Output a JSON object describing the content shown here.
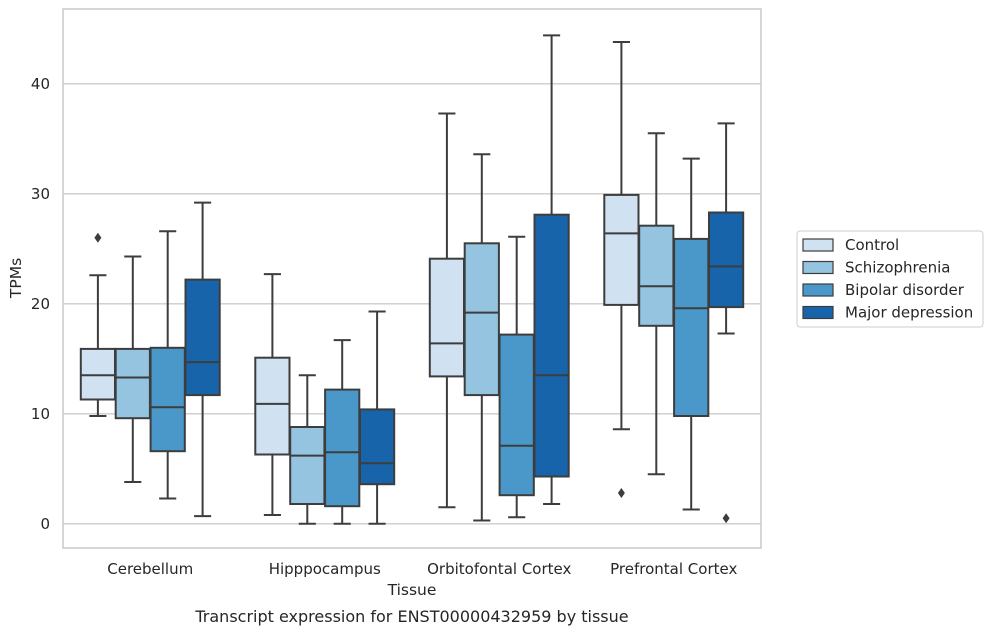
{
  "chart_data": {
    "type": "boxplot",
    "title": "",
    "caption": "Transcript expression for ENST00000432959 by tissue",
    "xlabel": "Tissue",
    "ylabel": "TPMs",
    "ylim": [
      -2.2,
      46.8
    ],
    "yticks": [
      0,
      10,
      20,
      30,
      40
    ],
    "grid": "horizontal",
    "legend_position": "right",
    "categories": [
      "Cerebellum",
      "Hipppocampus",
      "Orbitofontal Cortex",
      "Prefrontal Cortex"
    ],
    "series": [
      {
        "name": "Control",
        "color": "#d0e1f2",
        "boxes": [
          {
            "whisker_low": 9.8,
            "q1": 11.3,
            "median": 13.5,
            "q3": 15.9,
            "whisker_high": 22.6,
            "outliers": [
              26.0
            ]
          },
          {
            "whisker_low": 0.8,
            "q1": 6.3,
            "median": 10.9,
            "q3": 15.1,
            "whisker_high": 22.7,
            "outliers": []
          },
          {
            "whisker_low": 1.5,
            "q1": 13.4,
            "median": 16.4,
            "q3": 24.1,
            "whisker_high": 37.3,
            "outliers": []
          },
          {
            "whisker_low": 8.6,
            "q1": 19.9,
            "median": 26.4,
            "q3": 29.9,
            "whisker_high": 43.8,
            "outliers": [
              2.8
            ]
          }
        ]
      },
      {
        "name": "Schizophrenia",
        "color": "#94c4df",
        "boxes": [
          {
            "whisker_low": 3.8,
            "q1": 9.6,
            "median": 13.3,
            "q3": 15.9,
            "whisker_high": 24.3,
            "outliers": []
          },
          {
            "whisker_low": 0.0,
            "q1": 1.8,
            "median": 6.2,
            "q3": 8.8,
            "whisker_high": 13.5,
            "outliers": []
          },
          {
            "whisker_low": 0.3,
            "q1": 11.7,
            "median": 19.2,
            "q3": 25.5,
            "whisker_high": 33.6,
            "outliers": []
          },
          {
            "whisker_low": 4.5,
            "q1": 18.0,
            "median": 21.6,
            "q3": 27.1,
            "whisker_high": 35.5,
            "outliers": []
          }
        ]
      },
      {
        "name": "Bipolar disorder",
        "color": "#4a98c9",
        "boxes": [
          {
            "whisker_low": 2.3,
            "q1": 6.6,
            "median": 10.6,
            "q3": 16.0,
            "whisker_high": 26.6,
            "outliers": []
          },
          {
            "whisker_low": 0.0,
            "q1": 1.6,
            "median": 6.5,
            "q3": 12.2,
            "whisker_high": 16.7,
            "outliers": []
          },
          {
            "whisker_low": 0.6,
            "q1": 2.6,
            "median": 7.1,
            "q3": 17.2,
            "whisker_high": 26.1,
            "outliers": []
          },
          {
            "whisker_low": 1.3,
            "q1": 9.8,
            "median": 19.6,
            "q3": 25.9,
            "whisker_high": 33.2,
            "outliers": []
          }
        ]
      },
      {
        "name": "Major depression",
        "color": "#1764ab",
        "boxes": [
          {
            "whisker_low": 0.7,
            "q1": 11.7,
            "median": 14.7,
            "q3": 22.2,
            "whisker_high": 29.2,
            "outliers": []
          },
          {
            "whisker_low": 0.0,
            "q1": 3.6,
            "median": 5.5,
            "q3": 10.4,
            "whisker_high": 19.3,
            "outliers": []
          },
          {
            "whisker_low": 1.8,
            "q1": 4.3,
            "median": 13.5,
            "q3": 28.1,
            "whisker_high": 44.4,
            "outliers": []
          },
          {
            "whisker_low": 17.3,
            "q1": 19.7,
            "median": 23.4,
            "q3": 28.3,
            "whisker_high": 36.4,
            "outliers": [
              0.5
            ]
          }
        ]
      }
    ]
  }
}
